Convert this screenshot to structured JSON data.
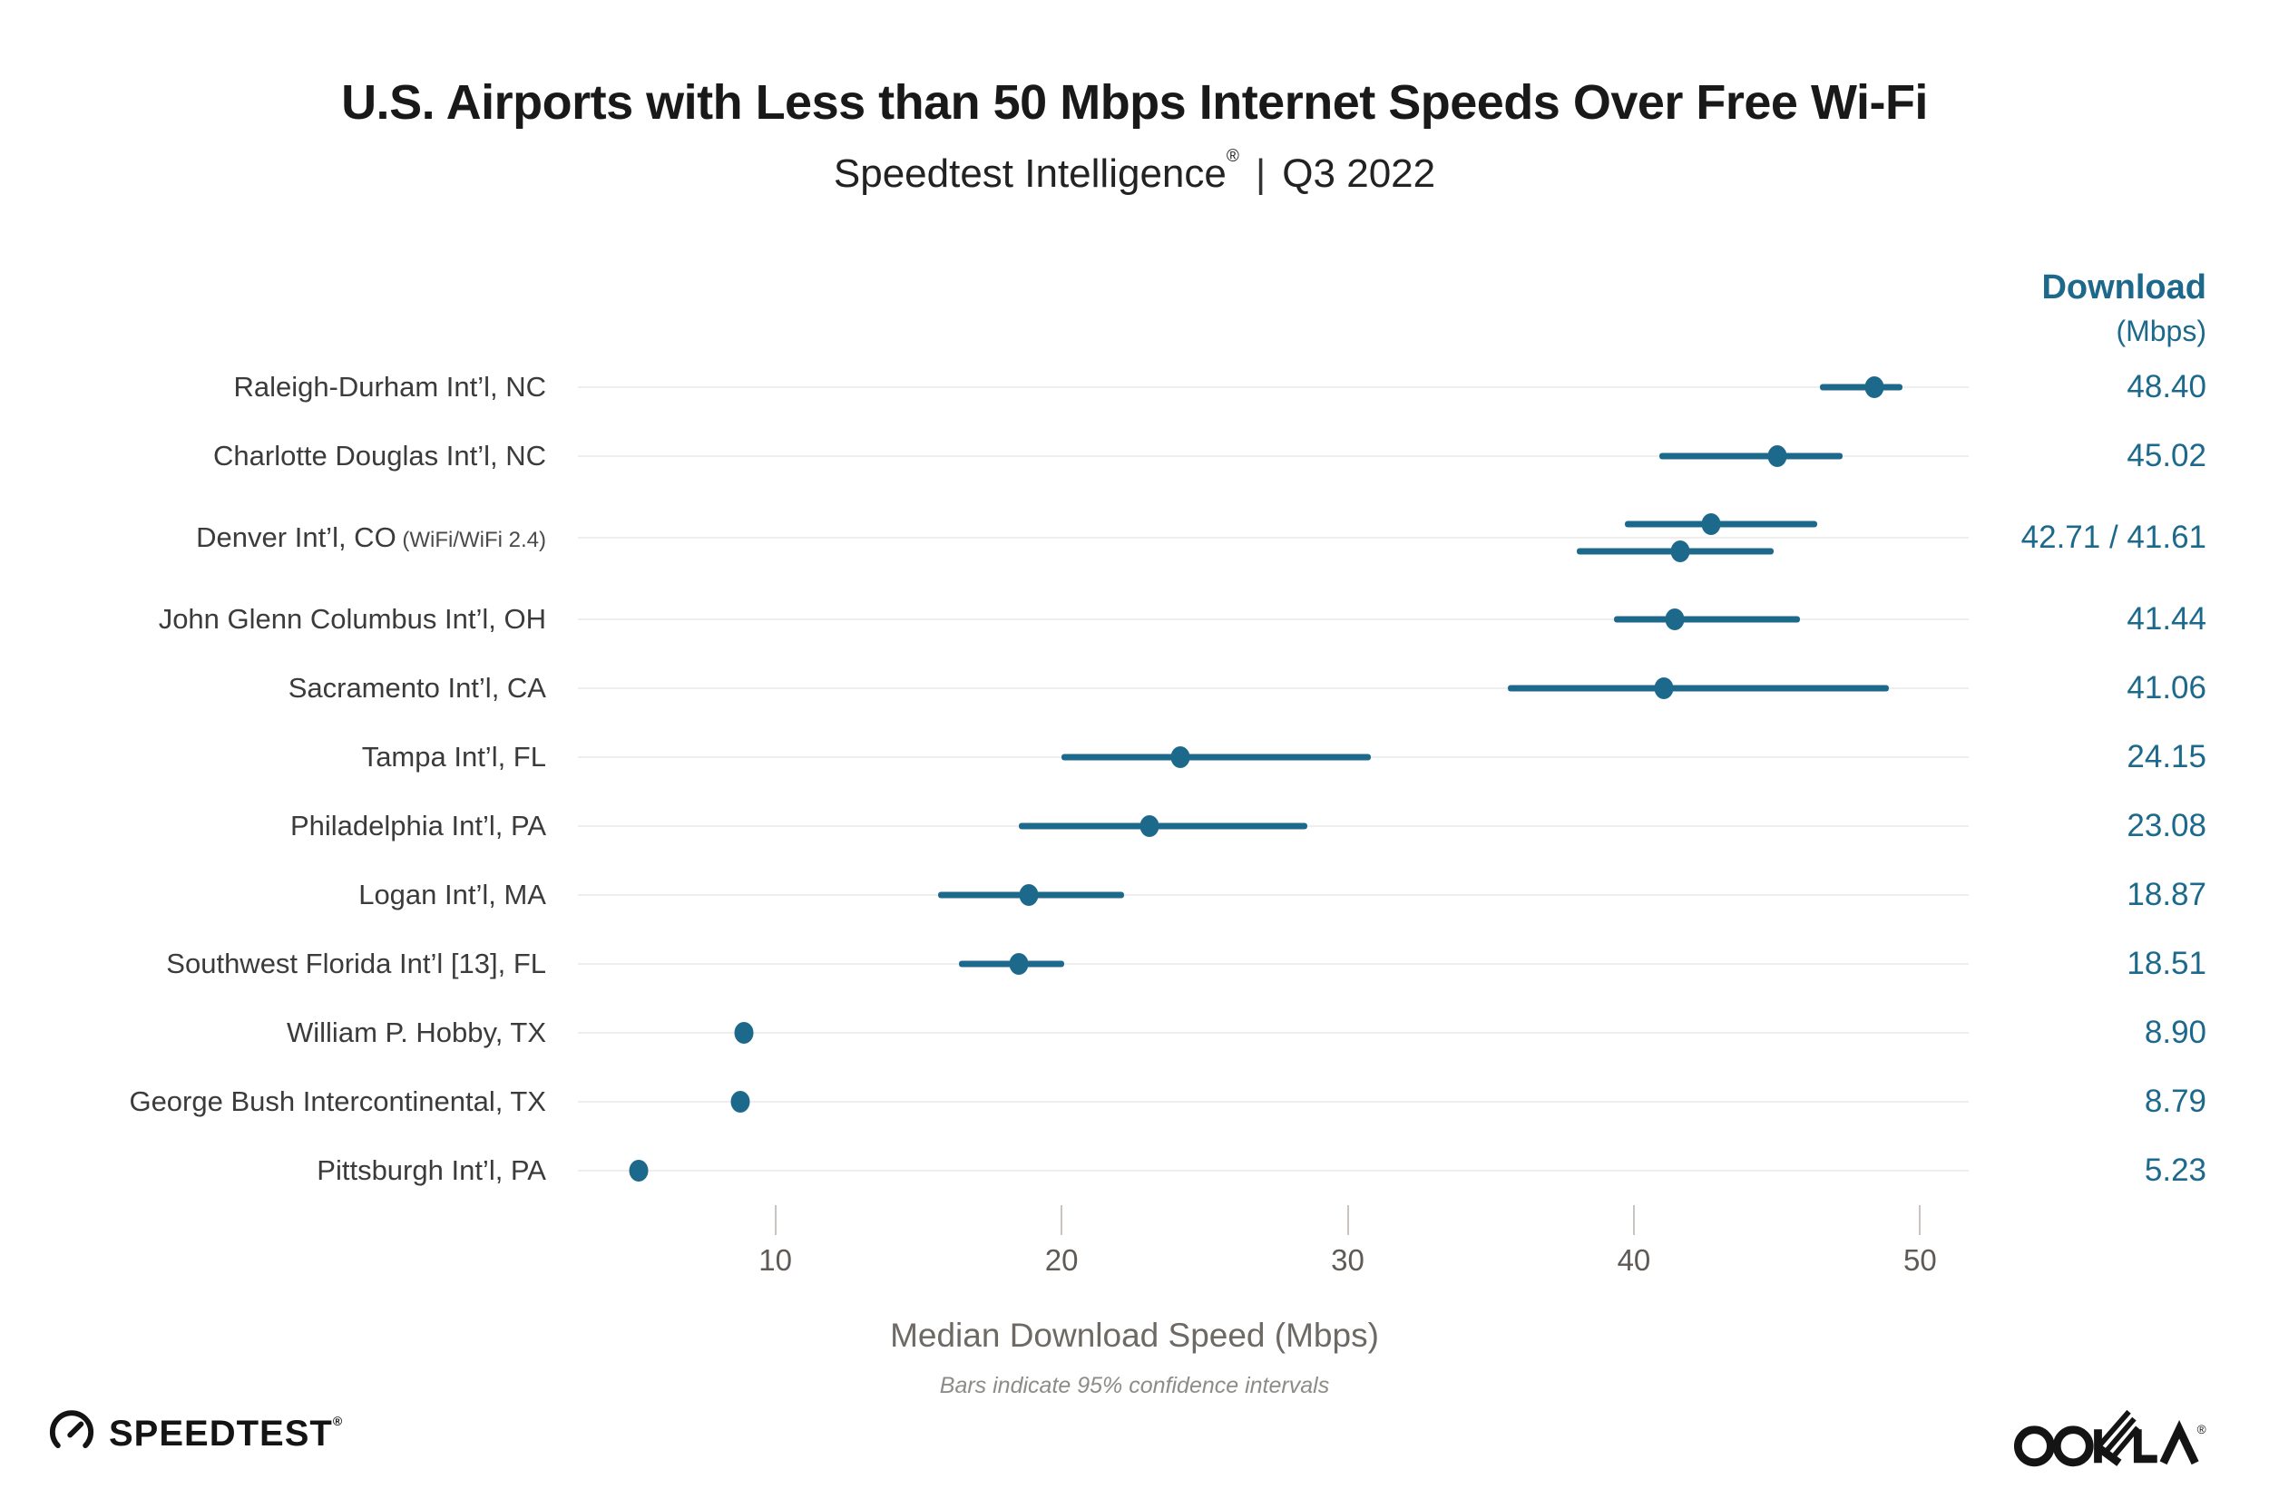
{
  "colors": {
    "accent_blue": "#1d698c",
    "title_text": "#191919",
    "label_text": "#3b3b3b",
    "grid_line": "#efeeee",
    "tick_mark": "#c9c4bf",
    "tick_text": "#5f5a55",
    "axis_text": "#6d6964",
    "footnote_text": "#8c8c88",
    "logo_black": "#141414"
  },
  "footer": {
    "speedtest_wordmark": "SPEEDTEST",
    "speedtest_reg": "®",
    "ookla_wordmark": "OOKLA"
  },
  "chart_data": {
    "type": "scatter",
    "variant": "dot-plot-with-95pct-confidence-interval-bars",
    "title": "U.S. Airports with Less than 50 Mbps Internet Speeds Over Free Wi-Fi",
    "subtitle_brand": "Speedtest Intelligence",
    "subtitle_reg": "®",
    "subtitle_sep": "|",
    "subtitle_period": "Q3 2022",
    "value_header_line1": "Download",
    "value_header_line2": "(Mbps)",
    "xlabel": "Median Download Speed (Mbps)",
    "footnote": "Bars indicate 95% confidence intervals",
    "xlim": [
      3.1,
      51.7
    ],
    "xticks": [
      10,
      20,
      30,
      40,
      50
    ],
    "grid": "horizontal-gridline-per-row",
    "legend": "none",
    "rows": [
      {
        "label": "Raleigh-Durham Int’l, NC",
        "value_label": "48.40",
        "points": [
          {
            "value": 48.4,
            "ci": [
              46.5,
              49.4
            ]
          }
        ]
      },
      {
        "label": "Charlotte Douglas Int’l, NC",
        "value_label": "45.02",
        "points": [
          {
            "value": 45.02,
            "ci": [
              40.9,
              47.3
            ]
          }
        ]
      },
      {
        "label": "Denver Int’l, CO",
        "note": "(WiFi/WiFi 2.4)",
        "value_label": "42.71 / 41.61",
        "points": [
          {
            "value": 42.71,
            "ci": [
              39.7,
              46.4
            ]
          },
          {
            "value": 41.61,
            "ci": [
              38.0,
              44.9
            ]
          }
        ]
      },
      {
        "label": "John Glenn Columbus Int’l, OH",
        "value_label": "41.44",
        "points": [
          {
            "value": 41.44,
            "ci": [
              39.3,
              45.8
            ]
          }
        ]
      },
      {
        "label": "Sacramento Int’l, CA",
        "value_label": "41.06",
        "points": [
          {
            "value": 41.06,
            "ci": [
              35.6,
              48.9
            ]
          }
        ]
      },
      {
        "label": "Tampa Int’l, FL",
        "value_label": "24.15",
        "points": [
          {
            "value": 24.15,
            "ci": [
              20.0,
              30.8
            ]
          }
        ]
      },
      {
        "label": "Philadelphia Int’l, PA",
        "value_label": "23.08",
        "points": [
          {
            "value": 23.08,
            "ci": [
              18.5,
              28.6
            ]
          }
        ]
      },
      {
        "label": "Logan Int’l, MA",
        "value_label": "18.87",
        "points": [
          {
            "value": 18.87,
            "ci": [
              15.7,
              22.2
            ]
          }
        ]
      },
      {
        "label": "Southwest Florida Int’l [13], FL",
        "value_label": "18.51",
        "points": [
          {
            "value": 18.51,
            "ci": [
              16.4,
              20.1
            ]
          }
        ]
      },
      {
        "label": "William P. Hobby, TX",
        "value_label": "8.90",
        "points": [
          {
            "value": 8.9,
            "ci": [
              8.7,
              9.1
            ]
          }
        ]
      },
      {
        "label": "George Bush Intercontinental, TX",
        "value_label": "8.79",
        "points": [
          {
            "value": 8.79,
            "ci": [
              8.6,
              9.0
            ]
          }
        ]
      },
      {
        "label": "Pittsburgh Int’l, PA",
        "value_label": "5.23",
        "points": [
          {
            "value": 5.23,
            "ci": [
              5.0,
              5.5
            ]
          }
        ]
      }
    ]
  }
}
